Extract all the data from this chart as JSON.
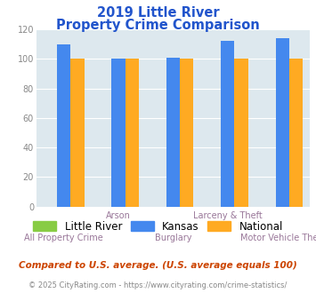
{
  "title_line1": "2019 Little River",
  "title_line2": "Property Crime Comparison",
  "categories": [
    "All Property Crime",
    "Arson",
    "Burglary",
    "Larceny & Theft",
    "Motor Vehicle Theft"
  ],
  "little_river": [
    0,
    0,
    0,
    0,
    0
  ],
  "kansas": [
    110,
    100,
    101,
    112,
    114
  ],
  "national": [
    100,
    100,
    100,
    100,
    100
  ],
  "little_river_color": "#88cc44",
  "kansas_color": "#4488ee",
  "national_color": "#ffaa22",
  "title_color": "#2255cc",
  "axis_label_color": "#997799",
  "tick_color": "#888888",
  "ylim": [
    0,
    120
  ],
  "yticks": [
    0,
    20,
    40,
    60,
    80,
    100,
    120
  ],
  "background_color": "#dde8ee",
  "grid_color": "#ffffff",
  "footnote1": "Compared to U.S. average. (U.S. average equals 100)",
  "footnote2": "© 2025 CityRating.com - https://www.cityrating.com/crime-statistics/",
  "footnote1_color": "#cc4400",
  "footnote2_color": "#888888",
  "legend_labels": [
    "Little River",
    "Kansas",
    "National"
  ],
  "bar_width": 0.25
}
